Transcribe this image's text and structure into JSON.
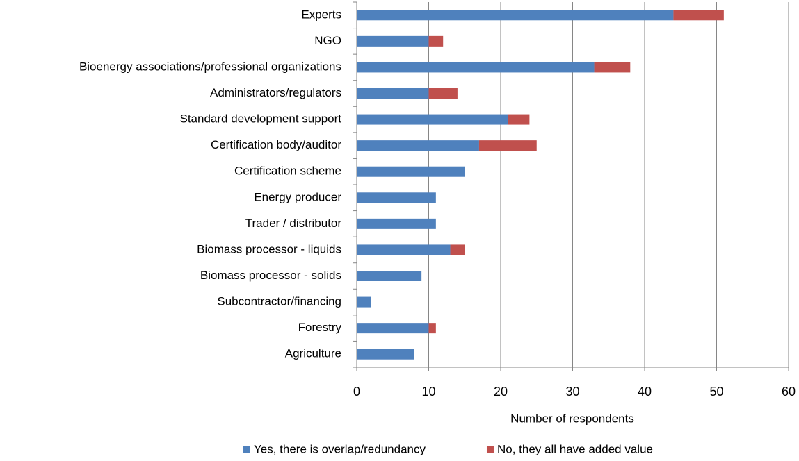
{
  "chart_data": {
    "type": "stacked-barh",
    "xlabel": "Number of respondents",
    "categories": [
      "Experts",
      "NGO",
      "Bioenergy associations/professional organizations",
      "Administrators/regulators",
      "Standard development support",
      "Certification body/auditor",
      "Certification scheme",
      "Energy producer",
      "Trader / distributor",
      "Biomass processor - liquids",
      "Biomass processor - solids",
      "Subcontractor/financing",
      "Forestry",
      "Agriculture"
    ],
    "series": [
      {
        "name": "Yes, there is overlap/redundancy",
        "color": "#4f81bd",
        "values": [
          44,
          10,
          33,
          10,
          21,
          17,
          15,
          11,
          11,
          13,
          9,
          2,
          10,
          8
        ]
      },
      {
        "name": "No, they all have added value",
        "color": "#c0504d",
        "values": [
          7,
          2,
          5,
          4,
          3,
          8,
          0,
          0,
          0,
          2,
          0,
          0,
          1,
          0
        ]
      }
    ],
    "xlim": [
      0,
      60
    ],
    "xticks": [
      0,
      10,
      20,
      30,
      40,
      50,
      60
    ],
    "grid": true,
    "legend": "bottom"
  }
}
